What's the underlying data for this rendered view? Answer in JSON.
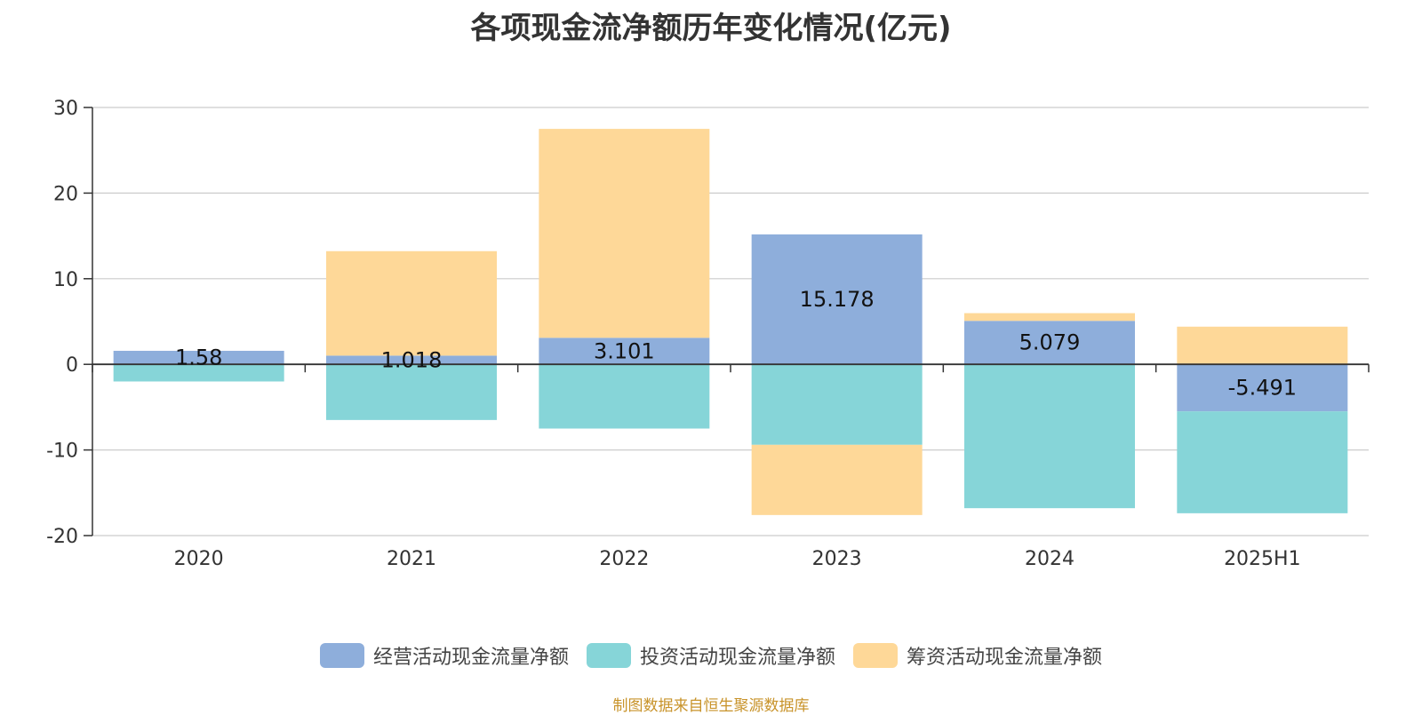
{
  "source_note": "制图数据来自恒生聚源数据库",
  "colors": {
    "operating": "#8eaedb",
    "investing": "#86d5d8",
    "financing": "#fed898",
    "grid": "#cccccc",
    "axis": "#333333"
  },
  "chart_data": {
    "type": "bar",
    "stacked": true,
    "title": "各项现金流净额历年变化情况(亿元)",
    "xlabel": "",
    "ylabel": "",
    "ylim": [
      -20,
      30
    ],
    "yticks": [
      30,
      20,
      10,
      0,
      -10,
      -20
    ],
    "grid": true,
    "legend_position": "bottom",
    "categories": [
      "2020",
      "2021",
      "2022",
      "2023",
      "2024",
      "2025H1"
    ],
    "series": [
      {
        "name": "经营活动现金流量净额",
        "values": [
          1.58,
          1.018,
          3.101,
          15.178,
          5.079,
          -5.491
        ],
        "labels": [
          "1.58",
          "1.018",
          "3.101",
          "15.178",
          "5.079",
          "-5.491"
        ]
      },
      {
        "name": "投资活动现金流量净额",
        "values": [
          -2.0,
          -6.5,
          -7.5,
          -9.4,
          -16.8,
          -11.9
        ]
      },
      {
        "name": "筹资活动现金流量净额",
        "values": [
          0,
          12.2,
          24.4,
          -8.2,
          0.9,
          4.4
        ]
      }
    ]
  }
}
